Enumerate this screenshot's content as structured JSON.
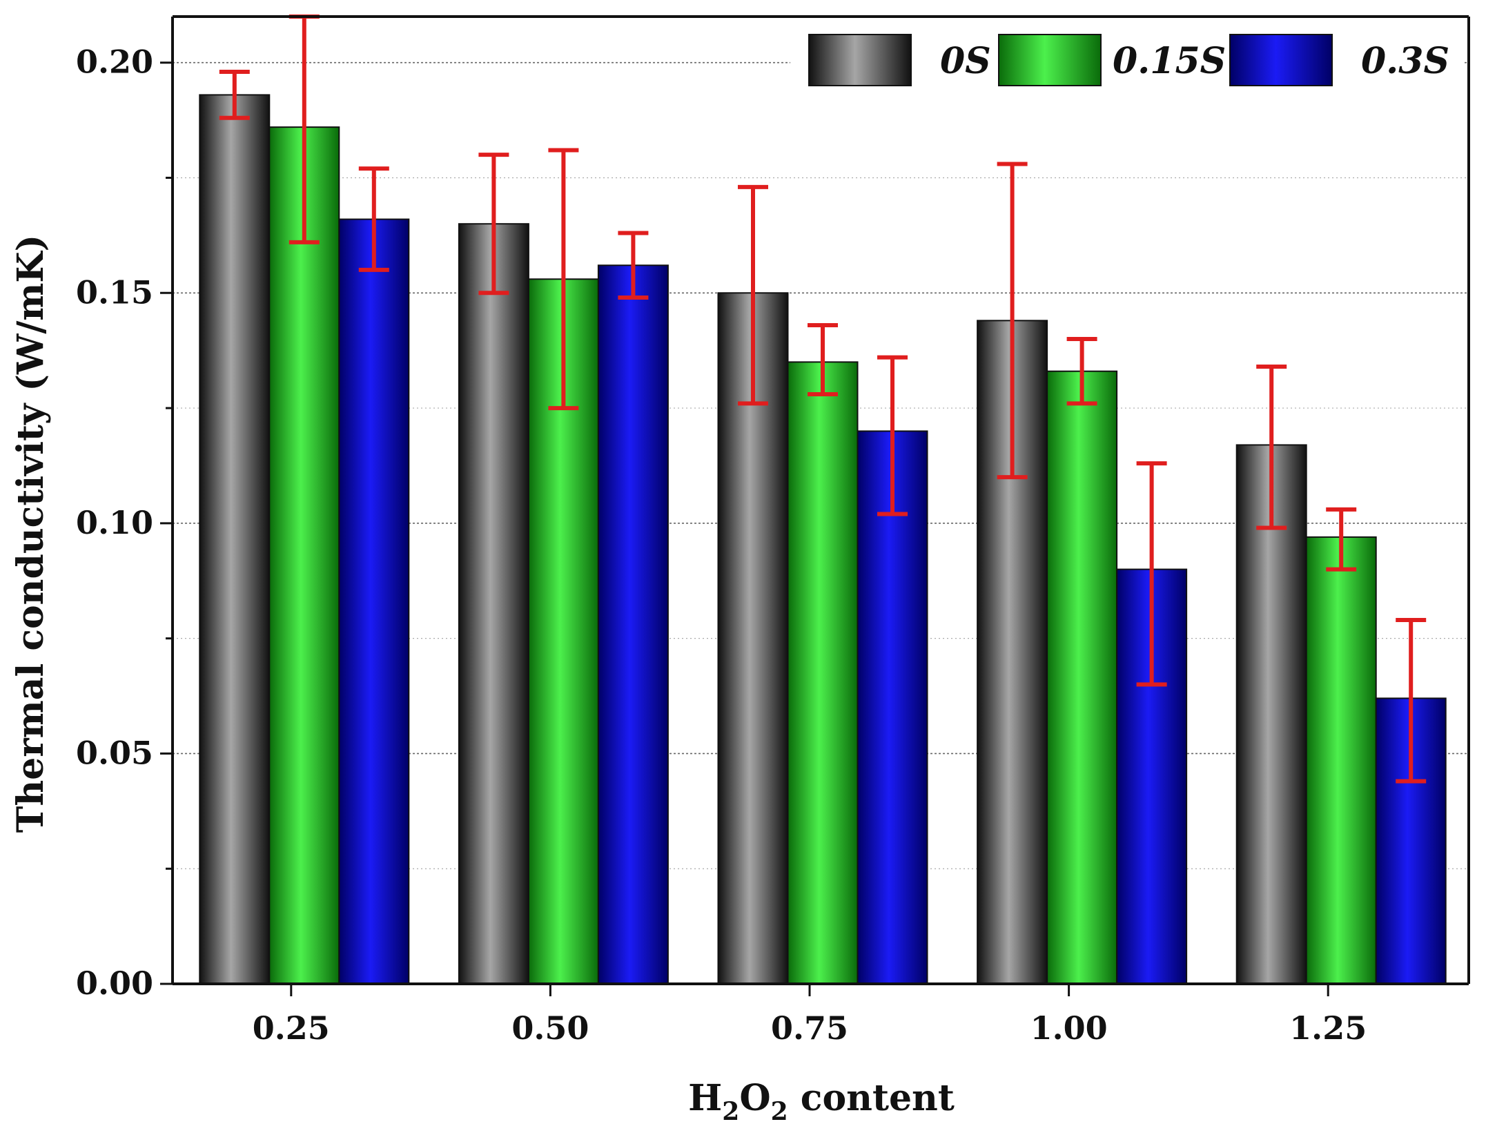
{
  "chart_data": {
    "type": "bar",
    "xlabel_prefix": "H",
    "xlabel_sub1": "2",
    "xlabel_mid": "O",
    "xlabel_sub2": "2",
    "xlabel_suffix": " content",
    "ylabel": "Thermal conductivity (W/mK)",
    "categories": [
      "0.25",
      "0.50",
      "0.75",
      "1.00",
      "1.25"
    ],
    "ylim": [
      0,
      0.21
    ],
    "yticks": [
      "0.00",
      "0.05",
      "0.10",
      "0.15",
      "0.20"
    ],
    "ytick_values": [
      0,
      0.05,
      0.1,
      0.15,
      0.2
    ],
    "grid": true,
    "legend_position": "top-right",
    "series": [
      {
        "name": "0S",
        "values": [
          0.193,
          0.165,
          0.15,
          0.144,
          0.117
        ],
        "err_low": [
          0.188,
          0.15,
          0.126,
          0.11,
          0.099
        ],
        "err_high": [
          0.198,
          0.18,
          0.173,
          0.178,
          0.134
        ],
        "color_light": "#a6a6a6",
        "color_dark": "#111111"
      },
      {
        "name": "0.15S",
        "values": [
          0.186,
          0.153,
          0.135,
          0.133,
          0.097
        ],
        "err_low": [
          0.161,
          0.125,
          0.128,
          0.126,
          0.09
        ],
        "err_high": [
          0.21,
          0.181,
          0.143,
          0.14,
          0.103
        ],
        "color_light": "#4cf04c",
        "color_dark": "#0a6b0a"
      },
      {
        "name": "0.3S",
        "values": [
          0.166,
          0.156,
          0.12,
          0.09,
          0.062
        ],
        "err_low": [
          0.155,
          0.149,
          0.102,
          0.065,
          0.044
        ],
        "err_high": [
          0.177,
          0.163,
          0.136,
          0.113,
          0.079
        ],
        "color_light": "#1b1bf5",
        "color_dark": "#000066"
      }
    ],
    "error_bar_color": "#e01e1e"
  }
}
